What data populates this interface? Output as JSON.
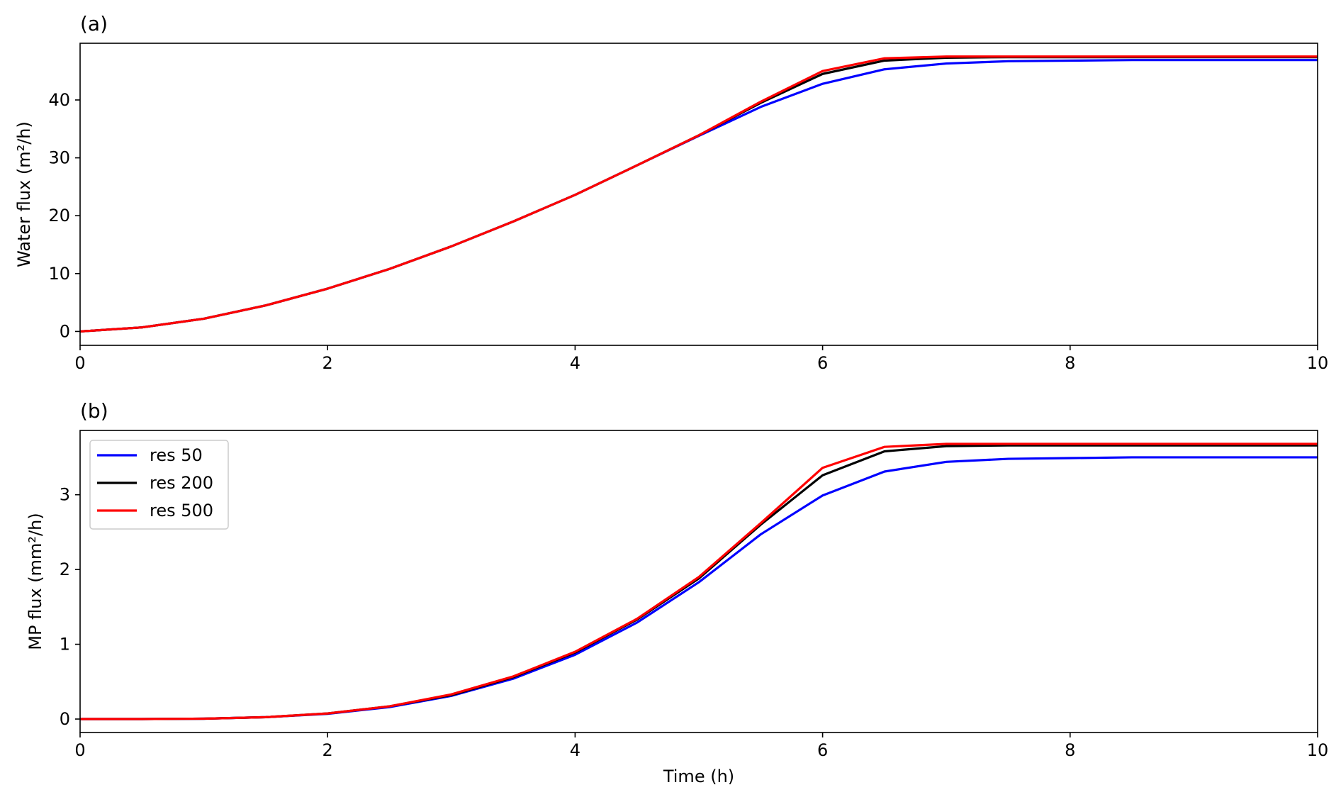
{
  "chart_data": [
    {
      "type": "line",
      "panel_label": "(a)",
      "xlabel": "",
      "ylabel": "Water flux (m²/h)",
      "xlim": [
        0,
        10
      ],
      "ylim": [
        -2.4,
        49.8
      ],
      "xticks": [
        "0",
        "2",
        "4",
        "6",
        "8",
        "10"
      ],
      "yticks": [
        "0",
        "10",
        "20",
        "30",
        "40"
      ],
      "grid": false,
      "legend": null,
      "x": [
        0,
        0.5,
        1,
        1.5,
        2,
        2.5,
        3,
        3.5,
        4,
        4.5,
        5,
        5.5,
        6,
        6.5,
        7,
        7.5,
        8,
        8.5,
        9,
        9.5,
        10
      ],
      "series": [
        {
          "name": "res 50",
          "color": "#0000ff",
          "values": [
            0,
            0.7,
            2.2,
            4.5,
            7.4,
            10.8,
            14.7,
            19.0,
            23.6,
            28.7,
            33.8,
            38.8,
            42.8,
            45.3,
            46.3,
            46.7,
            46.8,
            46.9,
            46.9,
            46.9,
            46.9
          ]
        },
        {
          "name": "res 200",
          "color": "#000000",
          "values": [
            0,
            0.7,
            2.2,
            4.5,
            7.4,
            10.8,
            14.7,
            19.0,
            23.6,
            28.7,
            33.9,
            39.5,
            44.5,
            46.8,
            47.3,
            47.4,
            47.4,
            47.4,
            47.4,
            47.4,
            47.4
          ]
        },
        {
          "name": "res 500",
          "color": "#ff0000",
          "values": [
            0,
            0.7,
            2.2,
            4.5,
            7.4,
            10.8,
            14.7,
            19.0,
            23.6,
            28.7,
            33.9,
            39.7,
            45.0,
            47.2,
            47.5,
            47.5,
            47.5,
            47.5,
            47.5,
            47.5,
            47.5
          ]
        }
      ]
    },
    {
      "type": "line",
      "panel_label": "(b)",
      "xlabel": "Time (h)",
      "ylabel": "MP flux (mm²/h)",
      "xlim": [
        0,
        10
      ],
      "ylim": [
        -0.18,
        3.86
      ],
      "xticks": [
        "0",
        "2",
        "4",
        "6",
        "8",
        "10"
      ],
      "yticks": [
        "0",
        "1",
        "2",
        "3"
      ],
      "grid": false,
      "legend": "upper left",
      "x": [
        0,
        0.5,
        1,
        1.5,
        2,
        2.5,
        3,
        3.5,
        4,
        4.5,
        5,
        5.5,
        6,
        6.5,
        7,
        7.5,
        8,
        8.5,
        9,
        9.5,
        10
      ],
      "series": [
        {
          "name": "res 50",
          "color": "#0000ff",
          "values": [
            0,
            0,
            0.005,
            0.025,
            0.07,
            0.16,
            0.31,
            0.54,
            0.86,
            1.29,
            1.83,
            2.47,
            2.99,
            3.31,
            3.44,
            3.48,
            3.49,
            3.5,
            3.5,
            3.5,
            3.5
          ]
        },
        {
          "name": "res 200",
          "color": "#000000",
          "values": [
            0,
            0,
            0.005,
            0.025,
            0.075,
            0.17,
            0.32,
            0.56,
            0.89,
            1.33,
            1.88,
            2.6,
            3.26,
            3.58,
            3.65,
            3.66,
            3.66,
            3.66,
            3.66,
            3.66,
            3.66
          ]
        },
        {
          "name": "res 500",
          "color": "#ff0000",
          "values": [
            0,
            0,
            0.005,
            0.025,
            0.075,
            0.17,
            0.33,
            0.57,
            0.9,
            1.34,
            1.9,
            2.62,
            3.36,
            3.64,
            3.68,
            3.68,
            3.68,
            3.68,
            3.68,
            3.68,
            3.68
          ]
        }
      ]
    }
  ]
}
